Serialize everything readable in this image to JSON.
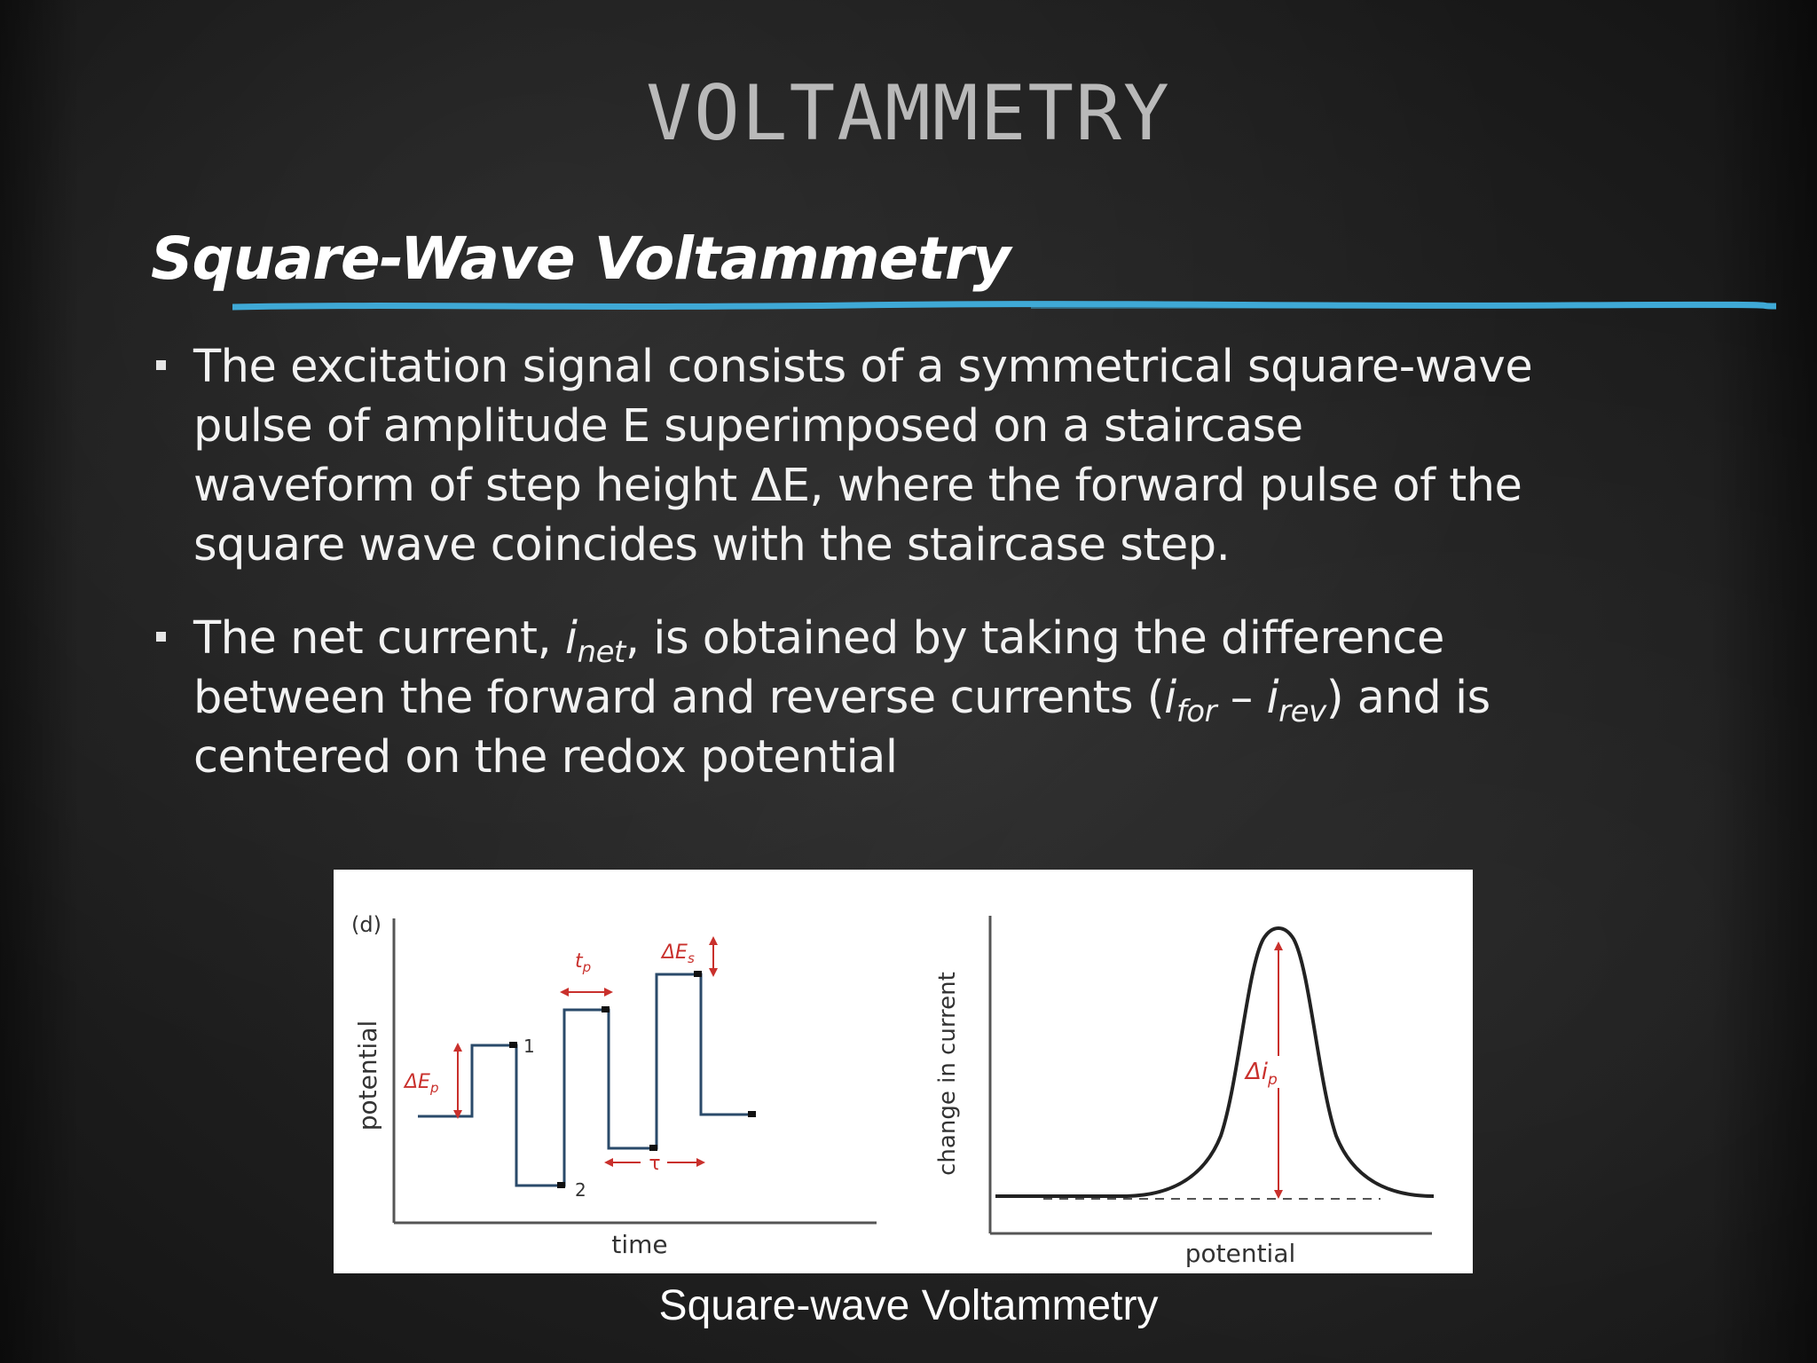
{
  "slide": {
    "title": "VOLTAMMETRY",
    "subtitle": "Square-Wave Voltammetry",
    "accent_color": "#3fa9d6"
  },
  "bullets": [
    {
      "text": "The excitation signal consists of a symmetrical square-wave pulse of amplitude E superimposed on a staircase waveform of step height ΔE, where the forward pulse of the square wave coincides with the staircase step."
    },
    {
      "text_before": "The net current, ",
      "i_symbol": "i",
      "net_sub": "net",
      "text_mid": ", is obtained by taking the difference between the forward and reverse currents (",
      "for_sub": "for",
      "dash": " – ",
      "rev_sub": "rev",
      "text_after": ") and is centered on the redox potential"
    }
  ],
  "figure": {
    "panel_label": "(d)",
    "left": {
      "xlabel": "time",
      "ylabel": "potential",
      "labels": {
        "tp": "t",
        "tp_sub": "p",
        "dEs": "ΔE",
        "dEs_sub": "s",
        "dEp": "ΔE",
        "dEp_sub": "p",
        "tau": "τ",
        "point1": "1",
        "point2": "2"
      }
    },
    "right": {
      "xlabel": "potential",
      "ylabel": "change in current",
      "dip": "Δi",
      "dip_sub": "p"
    },
    "caption": "Square-wave Voltammetry"
  }
}
